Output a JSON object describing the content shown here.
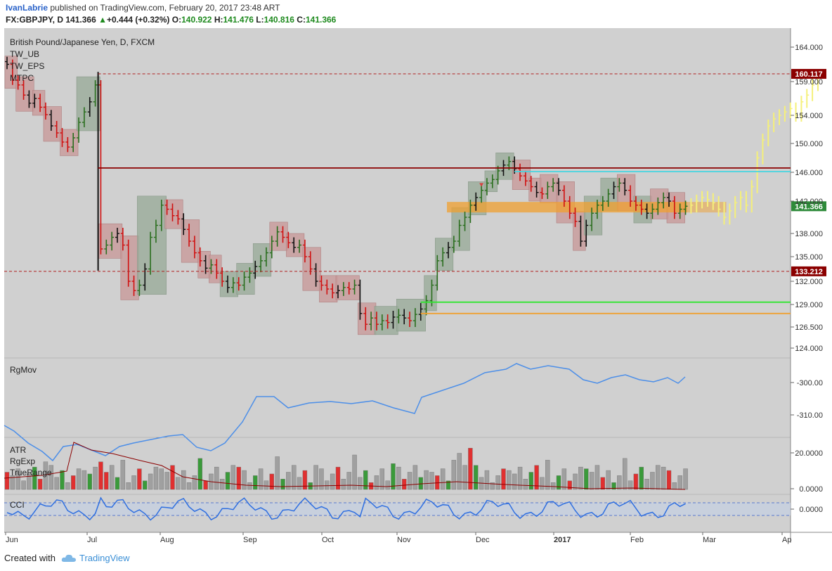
{
  "header": {
    "author": "IvanLabrie",
    "published_text": "published on TradingView.com, February 20, 2017 23:48 ART",
    "symbol": "FX:GBPJPY, D",
    "last": "141.366",
    "change": "+0.444 (+0.32%)",
    "open_label": "O:",
    "open": "140.922",
    "high_label": "H:",
    "high": "141.476",
    "low_label": "L:",
    "low": "140.816",
    "close_label": "C:",
    "close": "141.366"
  },
  "footer": {
    "created_with": "Created with",
    "brand": "TradingView"
  },
  "main_pane": {
    "title": "British Pound/Japanese Yen, D, FXCM",
    "indicators": [
      "TW_UB",
      "TW_EPS",
      "MTPC"
    ],
    "price_ticks": [
      "164.000",
      "159.000",
      "154.000",
      "150.000",
      "146.000",
      "142.000",
      "138.000",
      "135.000",
      "132.000",
      "129.000",
      "126.500",
      "124.000"
    ],
    "badges": [
      {
        "value": "160.117",
        "color": "#8b0000"
      },
      {
        "value": "141.366",
        "color": "#2e8b3a"
      },
      {
        "value": "133.212",
        "color": "#8b0000"
      }
    ],
    "levels": [
      {
        "price": 160.117,
        "style": "dashed",
        "color": "#b02020"
      },
      {
        "price": 146.6,
        "style": "solid",
        "color": "#8b0000"
      },
      {
        "price": 146.1,
        "style": "solid",
        "color": "#46d4e0"
      },
      {
        "price": 133.212,
        "style": "dashed",
        "color": "#b02020"
      },
      {
        "price": 129.3,
        "style": "solid",
        "color": "#2ee62e"
      },
      {
        "price": 128.0,
        "style": "solid",
        "color": "#f0a030"
      }
    ]
  },
  "rgmov_pane": {
    "label": "RgMov",
    "ticks": [
      "-300.00",
      "-310.00"
    ]
  },
  "atr_pane": {
    "labels": [
      "ATR",
      "RgExp",
      "TrueRange"
    ],
    "ticks": [
      "20.0000",
      "0.0000"
    ]
  },
  "cci_pane": {
    "label": "CCI",
    "ticks": [
      "0.0000"
    ]
  },
  "time_axis": [
    "Jun",
    "Jul",
    "Aug",
    "Sep",
    "Oct",
    "Nov",
    "Dec",
    "2017",
    "Feb",
    "Mar",
    "Ap"
  ],
  "colors": {
    "bull_box": "#9aab9a",
    "bear_box": "#c89a9a",
    "zone": "#f0a030",
    "projection": "#f5f07a",
    "rgmov_line": "#4d8fe8",
    "cci_line": "#2f6fe0",
    "atr_line": "#8b0000"
  },
  "chart_data": {
    "type": "candlestick",
    "symbol": "GBPJPY",
    "title": "British Pound/Japanese Yen, D, FXCM",
    "ylim": [
      122.0,
      166.0
    ],
    "ohlc_approx_close": [
      [
        0,
        161.5
      ],
      [
        1,
        159.2
      ],
      [
        2,
        158.5
      ],
      [
        3,
        157.0
      ],
      [
        4,
        155.8
      ],
      [
        5,
        156.5
      ],
      [
        6,
        155.2
      ],
      [
        7,
        154.1
      ],
      [
        8,
        152.5
      ],
      [
        9,
        151.5
      ],
      [
        10,
        150.2
      ],
      [
        11,
        149.5
      ],
      [
        12,
        150.8
      ],
      [
        13,
        153.0
      ],
      [
        14,
        154.5
      ],
      [
        15,
        156.0
      ],
      [
        16,
        158.5
      ],
      [
        17,
        136.0
      ],
      [
        18,
        136.5
      ],
      [
        19,
        137.5
      ],
      [
        20,
        138.0
      ],
      [
        21,
        136.5
      ],
      [
        22,
        132.0
      ],
      [
        23,
        130.8
      ],
      [
        24,
        131.5
      ],
      [
        25,
        133.5
      ],
      [
        26,
        137.5
      ],
      [
        27,
        139.0
      ],
      [
        28,
        141.5
      ],
      [
        29,
        141.0
      ],
      [
        30,
        140.2
      ],
      [
        31,
        139.8
      ],
      [
        32,
        138.5
      ],
      [
        33,
        137.0
      ],
      [
        34,
        135.5
      ],
      [
        35,
        134.5
      ],
      [
        36,
        133.6
      ],
      [
        37,
        134.0
      ],
      [
        38,
        133.0
      ],
      [
        39,
        132.0
      ],
      [
        40,
        131.2
      ],
      [
        41,
        131.8
      ],
      [
        42,
        131.5
      ],
      [
        43,
        132.5
      ],
      [
        44,
        133.0
      ],
      [
        45,
        133.8
      ],
      [
        46,
        134.5
      ],
      [
        47,
        135.5
      ],
      [
        48,
        137.0
      ],
      [
        49,
        138.2
      ],
      [
        50,
        137.5
      ],
      [
        51,
        136.8
      ],
      [
        52,
        136.2
      ],
      [
        53,
        136.5
      ],
      [
        54,
        135.0
      ],
      [
        55,
        133.5
      ],
      [
        56,
        132.0
      ],
      [
        57,
        131.5
      ],
      [
        58,
        131.0
      ],
      [
        59,
        130.5
      ],
      [
        60,
        130.8
      ],
      [
        61,
        131.2
      ],
      [
        62,
        131.0
      ],
      [
        63,
        131.5
      ],
      [
        64,
        128.0
      ],
      [
        65,
        126.8
      ],
      [
        66,
        127.5
      ],
      [
        67,
        126.8
      ],
      [
        68,
        127.2
      ],
      [
        69,
        127.0
      ],
      [
        70,
        127.6
      ],
      [
        71,
        127.8
      ],
      [
        72,
        127.5
      ],
      [
        73,
        127.2
      ],
      [
        74,
        127.9
      ],
      [
        75,
        128.5
      ],
      [
        76,
        129.5
      ],
      [
        77,
        131.5
      ],
      [
        78,
        134.5
      ],
      [
        79,
        135.5
      ],
      [
        80,
        136.2
      ],
      [
        81,
        137.0
      ],
      [
        82,
        139.0
      ],
      [
        83,
        140.0
      ],
      [
        84,
        141.5
      ],
      [
        85,
        142.5
      ],
      [
        86,
        143.5
      ],
      [
        87,
        144.5
      ],
      [
        88,
        145.0
      ],
      [
        89,
        146.2
      ],
      [
        90,
        147.0
      ],
      [
        91,
        147.5
      ],
      [
        92,
        146.5
      ],
      [
        93,
        145.5
      ],
      [
        94,
        144.8
      ],
      [
        95,
        144.0
      ],
      [
        96,
        143.2
      ],
      [
        97,
        143.0
      ],
      [
        98,
        144.0
      ],
      [
        99,
        144.5
      ],
      [
        100,
        143.5
      ],
      [
        101,
        142.0
      ],
      [
        102,
        140.5
      ],
      [
        103,
        139.5
      ],
      [
        104,
        137.0
      ],
      [
        105,
        139.0
      ],
      [
        106,
        140.5
      ],
      [
        107,
        141.5
      ],
      [
        108,
        142.0
      ],
      [
        109,
        143.0
      ],
      [
        110,
        144.0
      ],
      [
        111,
        144.5
      ],
      [
        112,
        143.5
      ],
      [
        113,
        142.0
      ],
      [
        114,
        141.5
      ],
      [
        115,
        141.0
      ],
      [
        116,
        140.5
      ],
      [
        117,
        141.0
      ],
      [
        118,
        141.8
      ],
      [
        119,
        142.5
      ],
      [
        120,
        142.0
      ],
      [
        121,
        140.5
      ],
      [
        122,
        141.0
      ],
      [
        123,
        141.366
      ]
    ],
    "projection_close": [
      141.5,
      142.0,
      142.5,
      142.2,
      141.8,
      141.0,
      140.0,
      140.8,
      141.8,
      142.5,
      141.5,
      144.0,
      148.0,
      150.5,
      152.5,
      153.5,
      154.0,
      154.5,
      155.0,
      154.0,
      156.0,
      157.0,
      158.5,
      159.5
    ],
    "rgmov": {
      "ticks": [
        -300,
        -310
      ]
    },
    "atr": {
      "ticks": [
        20,
        0
      ]
    },
    "cci": {
      "ticks": [
        0
      ]
    }
  }
}
